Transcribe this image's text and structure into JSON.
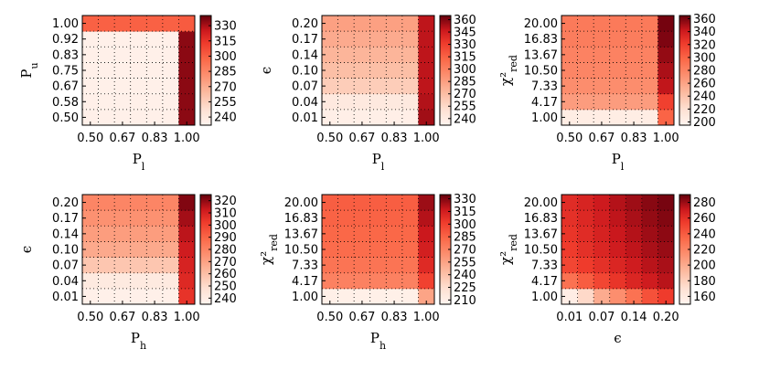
{
  "chart_data": [
    {
      "type": "heatmap",
      "xlabel": "P_l",
      "ylabel": "P_u",
      "x_ticks": [
        "0.50",
        "0.67",
        "0.83",
        "1.00"
      ],
      "y_ticks": [
        "0.50",
        "0.58",
        "0.67",
        "0.75",
        "0.83",
        "0.92",
        "1.00"
      ],
      "colorbar_ticks": [
        "240",
        "255",
        "270",
        "285",
        "300",
        "315",
        "330"
      ],
      "vmin": 232,
      "vmax": 340,
      "z": [
        [
          236,
          236,
          236,
          236,
          236,
          236,
          335
        ],
        [
          236,
          236,
          236,
          236,
          236,
          236,
          335
        ],
        [
          236,
          236,
          236,
          236,
          236,
          236,
          335
        ],
        [
          236,
          236,
          236,
          236,
          236,
          236,
          335
        ],
        [
          236,
          236,
          236,
          236,
          236,
          236,
          335
        ],
        [
          236,
          236,
          236,
          236,
          236,
          236,
          335
        ],
        [
          300,
          300,
          300,
          300,
          300,
          300,
          302
        ]
      ]
    },
    {
      "type": "heatmap",
      "xlabel": "P_l",
      "ylabel": "ϵ",
      "x_ticks": [
        "0.50",
        "0.67",
        "0.83",
        "1.00"
      ],
      "y_ticks": [
        "0.01",
        "0.04",
        "0.07",
        "0.10",
        "0.14",
        "0.17",
        "0.20"
      ],
      "colorbar_ticks": [
        "240",
        "255",
        "270",
        "285",
        "300",
        "315",
        "330",
        "345",
        "360"
      ],
      "vmin": 232,
      "vmax": 365,
      "z": [
        [
          238,
          238,
          238,
          238,
          238,
          238,
          355
        ],
        [
          243,
          243,
          243,
          243,
          243,
          243,
          352
        ],
        [
          262,
          262,
          262,
          262,
          262,
          262,
          350
        ],
        [
          270,
          270,
          270,
          270,
          270,
          270,
          350
        ],
        [
          275,
          275,
          275,
          275,
          275,
          275,
          350
        ],
        [
          280,
          280,
          280,
          280,
          280,
          280,
          350
        ],
        [
          285,
          285,
          285,
          285,
          285,
          285,
          350
        ]
      ]
    },
    {
      "type": "heatmap",
      "xlabel": "P_l",
      "ylabel": "χ²_red",
      "x_ticks": [
        "0.50",
        "0.67",
        "0.83",
        "1.00"
      ],
      "y_ticks": [
        "1.00",
        "4.17",
        "7.33",
        "10.50",
        "13.67",
        "16.83",
        "20.00"
      ],
      "colorbar_ticks": [
        "200",
        "220",
        "240",
        "260",
        "280",
        "300",
        "320",
        "340",
        "360"
      ],
      "vmin": 195,
      "vmax": 365,
      "z": [
        [
          205,
          205,
          205,
          205,
          205,
          205,
          300
        ],
        [
          265,
          265,
          265,
          265,
          265,
          265,
          320
        ],
        [
          275,
          275,
          275,
          275,
          275,
          275,
          345
        ],
        [
          280,
          280,
          280,
          280,
          280,
          280,
          350
        ],
        [
          282,
          282,
          282,
          282,
          282,
          282,
          355
        ],
        [
          285,
          285,
          285,
          285,
          285,
          285,
          360
        ],
        [
          287,
          287,
          287,
          287,
          287,
          287,
          362
        ]
      ]
    },
    {
      "type": "heatmap",
      "xlabel": "P_h",
      "ylabel": "ϵ",
      "x_ticks": [
        "0.50",
        "0.67",
        "0.83",
        "1.00"
      ],
      "y_ticks": [
        "0.01",
        "0.04",
        "0.07",
        "0.10",
        "0.14",
        "0.17",
        "0.20"
      ],
      "colorbar_ticks": [
        "240",
        "250",
        "260",
        "270",
        "280",
        "290",
        "300",
        "310",
        "320"
      ],
      "vmin": 235,
      "vmax": 325,
      "z": [
        [
          238,
          238,
          238,
          238,
          238,
          238,
          305
        ],
        [
          242,
          242,
          242,
          242,
          242,
          242,
          308
        ],
        [
          258,
          258,
          258,
          258,
          258,
          258,
          310
        ],
        [
          268,
          268,
          268,
          268,
          268,
          268,
          312
        ],
        [
          272,
          272,
          272,
          272,
          272,
          272,
          315
        ],
        [
          276,
          276,
          276,
          276,
          276,
          276,
          318
        ],
        [
          280,
          280,
          280,
          280,
          280,
          280,
          322
        ]
      ]
    },
    {
      "type": "heatmap",
      "xlabel": "P_h",
      "ylabel": "χ²_red",
      "x_ticks": [
        "0.50",
        "0.67",
        "0.83",
        "1.00"
      ],
      "y_ticks": [
        "1.00",
        "4.17",
        "7.33",
        "10.50",
        "13.67",
        "16.83",
        "20.00"
      ],
      "colorbar_ticks": [
        "210",
        "225",
        "240",
        "255",
        "270",
        "285",
        "300",
        "315",
        "330"
      ],
      "vmin": 205,
      "vmax": 335,
      "z": [
        [
          210,
          210,
          210,
          210,
          210,
          210,
          255
        ],
        [
          272,
          272,
          272,
          272,
          272,
          272,
          300
        ],
        [
          278,
          278,
          278,
          278,
          278,
          278,
          310
        ],
        [
          282,
          282,
          282,
          282,
          282,
          282,
          315
        ],
        [
          284,
          284,
          284,
          284,
          284,
          284,
          318
        ],
        [
          286,
          286,
          286,
          286,
          286,
          286,
          322
        ],
        [
          288,
          288,
          288,
          288,
          288,
          288,
          326
        ]
      ]
    },
    {
      "type": "heatmap",
      "xlabel": "ϵ",
      "ylabel": "χ²_red",
      "x_ticks": [
        "0.01",
        "0.07",
        "0.14",
        "0.20"
      ],
      "y_ticks": [
        "1.00",
        "4.17",
        "7.33",
        "10.50",
        "13.67",
        "16.83",
        "20.00"
      ],
      "colorbar_ticks": [
        "160",
        "180",
        "200",
        "220",
        "240",
        "260",
        "280"
      ],
      "vmin": 150,
      "vmax": 290,
      "z": [
        [
          158,
          175,
          200,
          215,
          230,
          245,
          255
        ],
        [
          230,
          240,
          250,
          258,
          265,
          270,
          275
        ],
        [
          250,
          255,
          260,
          265,
          270,
          275,
          278
        ],
        [
          255,
          260,
          265,
          270,
          274,
          278,
          281
        ],
        [
          258,
          262,
          267,
          272,
          276,
          280,
          283
        ],
        [
          260,
          264,
          269,
          274,
          278,
          282,
          285
        ],
        [
          262,
          266,
          271,
          276,
          280,
          284,
          287
        ]
      ]
    }
  ]
}
